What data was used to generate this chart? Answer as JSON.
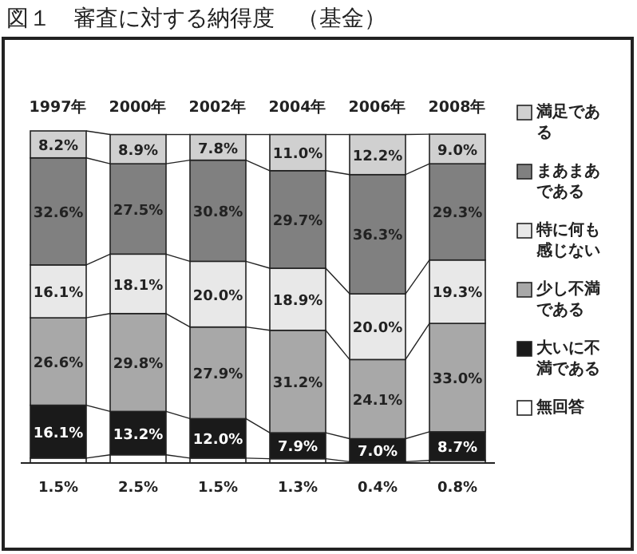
{
  "chart_data": {
    "type": "bar",
    "stacked": true,
    "title": "図１　審査に対する納得度　（基金）",
    "categories": [
      "1997年",
      "2000年",
      "2002年",
      "2004年",
      "2006年",
      "2008年"
    ],
    "legend": "right",
    "series": [
      {
        "name": "無回答",
        "color": "#ffffff",
        "values": [
          1.5,
          2.5,
          1.5,
          1.3,
          0.4,
          0.8
        ],
        "value_labels": [
          "1.5%",
          "2.5%",
          "1.5%",
          "1.3%",
          "0.4%",
          "0.8%"
        ]
      },
      {
        "name": "大いに不満である",
        "color": "#1a1a1a",
        "values": [
          16.1,
          13.2,
          12.0,
          7.9,
          7.0,
          8.7
        ],
        "value_labels": [
          "16.1%",
          "13.2%",
          "12.0%",
          "7.9%",
          "7.0%",
          "8.7%"
        ]
      },
      {
        "name": "少し不満である",
        "color": "#a8a8a8",
        "values": [
          26.6,
          29.8,
          27.9,
          31.2,
          24.1,
          33.0
        ],
        "value_labels": [
          "26.6%",
          "29.8%",
          "27.9%",
          "31.2%",
          "24.1%",
          "33.0%"
        ]
      },
      {
        "name": "特に何も感じない",
        "color": "#e8e8e8",
        "values": [
          16.1,
          18.1,
          20.0,
          18.9,
          20.0,
          19.3
        ],
        "value_labels": [
          "16.1%",
          "18.1%",
          "20.0%",
          "18.9%",
          "20.0%",
          "19.3%"
        ]
      },
      {
        "name": "まあまあである",
        "color": "#808080",
        "values": [
          32.6,
          27.5,
          30.8,
          29.7,
          36.3,
          29.3
        ],
        "value_labels": [
          "32.6%",
          "27.5%",
          "30.8%",
          "29.7%",
          "36.3%",
          "29.3%"
        ]
      },
      {
        "name": "満足である",
        "color": "#d0d0d0",
        "values": [
          8.2,
          8.9,
          7.8,
          11.0,
          12.2,
          9.0
        ],
        "value_labels": [
          "8.2%",
          "8.9%",
          "7.8%",
          "11.0%",
          "12.2%",
          "9.0%"
        ]
      }
    ]
  }
}
